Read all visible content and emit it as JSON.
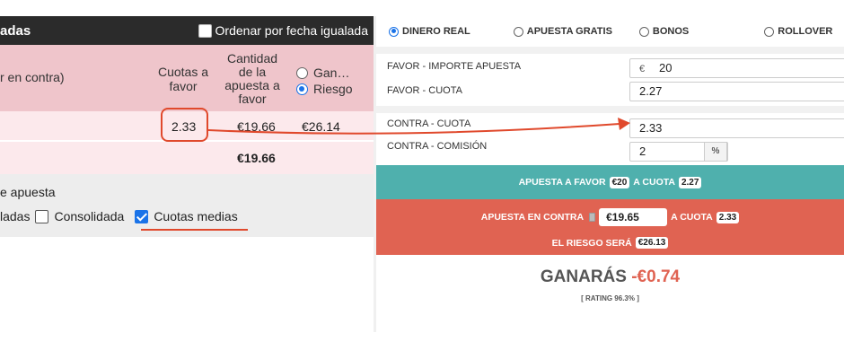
{
  "left": {
    "title": "adas",
    "sort_label": "Ordenar por fecha igualada",
    "header": {
      "col1": "r en contra)",
      "col2_l1": "Cuotas a",
      "col2_l2": "favor",
      "col3_l1": "Cantidad",
      "col3_l2": "de la",
      "col3_l3": "apuesta a",
      "col3_l4": "favor",
      "radio1": "Gan…",
      "radio2": "Riesgo"
    },
    "row": {
      "odds": "2.33",
      "stake": "€19.66",
      "risk": "€26.14"
    },
    "total": "€19.66",
    "footer": {
      "line1": "e apuesta",
      "prefix": "ladas",
      "consolidada": "Consolidada",
      "cuotas_medias": "Cuotas medias"
    }
  },
  "right": {
    "modes": [
      "DINERO REAL",
      "APUESTA GRATIS",
      "BONOS",
      "ROLLOVER"
    ],
    "favor_importe_label": "FAVOR - IMPORTE APUESTA",
    "favor_cuota_label": "FAVOR - CUOTA",
    "currency": "€",
    "favor_importe": "20",
    "favor_cuota": "2.27",
    "contra_cuota_label": "CONTRA - CUOTA",
    "contra_comision_label": "CONTRA - COMISIÓN",
    "contra_cuota": "2.33",
    "contra_comision": "2",
    "percent": "%",
    "green": {
      "t1": "APUESTA A FAVOR",
      "v1": "€20",
      "t2": "A CUOTA",
      "v2": "2.27"
    },
    "red": {
      "t1": "APUESTA EN CONTRA",
      "v1": "€19.65",
      "t2": "A CUOTA",
      "v2": "2.33",
      "t3": "EL RIESGO SERÁ",
      "v3": "€26.13"
    },
    "result": {
      "label": "GANARÁS",
      "value": "-€0.74",
      "rating": "[ RATING 96.3% ]"
    }
  },
  "colors": {
    "highlight": "#e0492c",
    "green_bar": "#4fb0ad",
    "red_bar": "#e06352"
  }
}
